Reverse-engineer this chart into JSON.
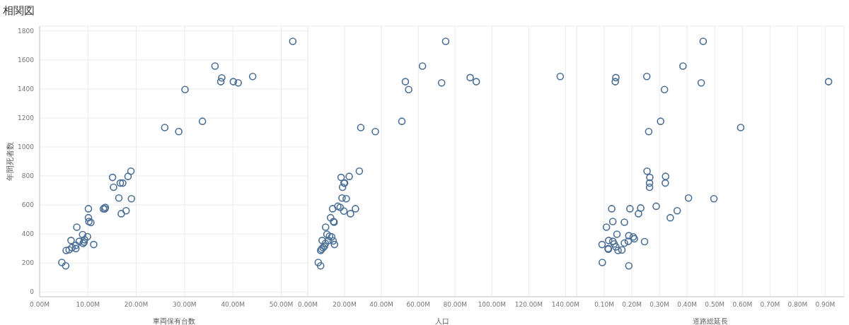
{
  "chart_data": [
    {
      "type": "scatter",
      "title": "相関図",
      "ylabel": "年間死者数",
      "xlabel": "車両保有台数",
      "color": "#4a6e96",
      "marker": "circle",
      "grid": true,
      "x": [
        52.4,
        36.3,
        37.7,
        37.5,
        40.1,
        41.1,
        44.1,
        30.1,
        33.7,
        25.9,
        28.8,
        18.9,
        15.1,
        18.3,
        15.3,
        16.7,
        17.2,
        16.4,
        19.0,
        17.9,
        16.9,
        10.1,
        13.2,
        13.6,
        13.5,
        10.1,
        10.2,
        10.6,
        7.7,
        6.5,
        8.9,
        9.9,
        9.3,
        9.2,
        9.0,
        8.2,
        7.5,
        7.5,
        6.7,
        6.1,
        5.5,
        11.2,
        4.6,
        5.4
      ],
      "values": [
        1728,
        1558,
        1476,
        1450,
        1450,
        1442,
        1486,
        1396,
        1177,
        1134,
        1106,
        833,
        790,
        797,
        722,
        751,
        751,
        648,
        643,
        560,
        540,
        574,
        574,
        583,
        573,
        512,
        486,
        479,
        447,
        355,
        396,
        381,
        360,
        344,
        335,
        349,
        322,
        299,
        306,
        291,
        286,
        327,
        203,
        180
      ],
      "xlim": [
        0,
        55.5
      ],
      "xticks": [
        {
          "value": 0,
          "label": "0.00M"
        },
        {
          "value": 10,
          "label": "10.00M"
        },
        {
          "value": 20,
          "label": "20.00M"
        },
        {
          "value": 30,
          "label": "30.00M"
        },
        {
          "value": 40,
          "label": "40.00M"
        },
        {
          "value": 50,
          "label": "50.00M"
        }
      ],
      "ylim": [
        -33,
        1833
      ],
      "yticks": [
        0,
        200,
        400,
        600,
        800,
        1000,
        1200,
        1400,
        1600,
        1800
      ]
    },
    {
      "type": "scatter",
      "xlabel": "人口",
      "color": "#4a6e96",
      "marker": "circle",
      "grid": true,
      "tick_labels": "x",
      "x": [
        74.9,
        62.3,
        53.0,
        54.8,
        72.7,
        88.2,
        91.5,
        137.1,
        51.1,
        28.8,
        36.7,
        28.0,
        18.1,
        22.5,
        19.7,
        20.0,
        18.9,
        18.6,
        20.9,
        16.3,
        17.6,
        19.6,
        13.5,
        25.9,
        23.2,
        12.4,
        14.0,
        14.3,
        9.7,
        10.4,
        11.8,
        13.0,
        7.8,
        13.8,
        9.6,
        14.5,
        11.3,
        9.0,
        8.3,
        7.5,
        7.0,
        5.7,
        7.0
      ],
      "values": [
        1728,
        1558,
        1450,
        1396,
        1442,
        1478,
        1450,
        1486,
        1177,
        1134,
        1106,
        833,
        790,
        797,
        751,
        751,
        722,
        648,
        643,
        591,
        583,
        558,
        574,
        574,
        540,
        512,
        486,
        481,
        447,
        398,
        385,
        380,
        355,
        352,
        335,
        327,
        355,
        314,
        306,
        295,
        286,
        203,
        180
      ],
      "xlim": [
        0,
        146
      ],
      "xticks": [
        {
          "value": 0,
          "label": "0.00M"
        },
        {
          "value": 20,
          "label": "20.00M"
        },
        {
          "value": 40,
          "label": "40.00M"
        },
        {
          "value": 60,
          "label": "60.00M"
        },
        {
          "value": 80,
          "label": "80.00M"
        },
        {
          "value": 100,
          "label": "100.00M"
        },
        {
          "value": 120,
          "label": "120.00M"
        },
        {
          "value": 140,
          "label": "140.00M"
        }
      ],
      "ylim": [
        -33,
        1833
      ],
      "yticks": [
        0,
        200,
        400,
        600,
        800,
        1000,
        1200,
        1400,
        1600,
        1800
      ]
    },
    {
      "type": "scatter",
      "xlabel": "道路総延長",
      "color": "#4a6e96",
      "marker": "circle",
      "grid": true,
      "tick_labels": "x",
      "x": [
        0.458,
        0.385,
        0.142,
        0.14,
        0.254,
        0.451,
        0.912,
        0.318,
        0.304,
        0.261,
        0.594,
        0.255,
        0.265,
        0.322,
        0.264,
        0.321,
        0.264,
        0.405,
        0.497,
        0.127,
        0.193,
        0.232,
        0.224,
        0.288,
        0.364,
        0.339,
        0.131,
        0.173,
        0.108,
        0.146,
        0.189,
        0.205,
        0.209,
        0.116,
        0.131,
        0.173,
        0.187,
        0.246,
        0.092,
        0.136,
        0.142,
        0.114,
        0.115,
        0.15,
        0.164,
        0.093,
        0.189
      ],
      "values": [
        1728,
        1558,
        1478,
        1450,
        1486,
        1442,
        1450,
        1396,
        1177,
        1106,
        1134,
        833,
        790,
        797,
        751,
        751,
        722,
        648,
        643,
        574,
        574,
        579,
        540,
        591,
        560,
        512,
        486,
        481,
        447,
        398,
        388,
        380,
        367,
        355,
        349,
        337,
        349,
        347,
        327,
        331,
        311,
        299,
        295,
        286,
        290,
        203,
        180
      ],
      "xlim": [
        0,
        0.968
      ],
      "xticks": [
        {
          "value": 0.1,
          "label": "0.10M"
        },
        {
          "value": 0.2,
          "label": "0.20M"
        },
        {
          "value": 0.3,
          "label": "0.30M"
        },
        {
          "value": 0.4,
          "label": "0.40M"
        },
        {
          "value": 0.5,
          "label": "0.50M"
        },
        {
          "value": 0.6,
          "label": "0.60M"
        },
        {
          "value": 0.7,
          "label": "0.70M"
        },
        {
          "value": 0.8,
          "label": "0.80M"
        },
        {
          "value": 0.9,
          "label": "0.90M"
        }
      ],
      "ylim": [
        -33,
        1833
      ],
      "yticks": [
        0,
        200,
        400,
        600,
        800,
        1000,
        1200,
        1400,
        1600,
        1800
      ]
    }
  ]
}
